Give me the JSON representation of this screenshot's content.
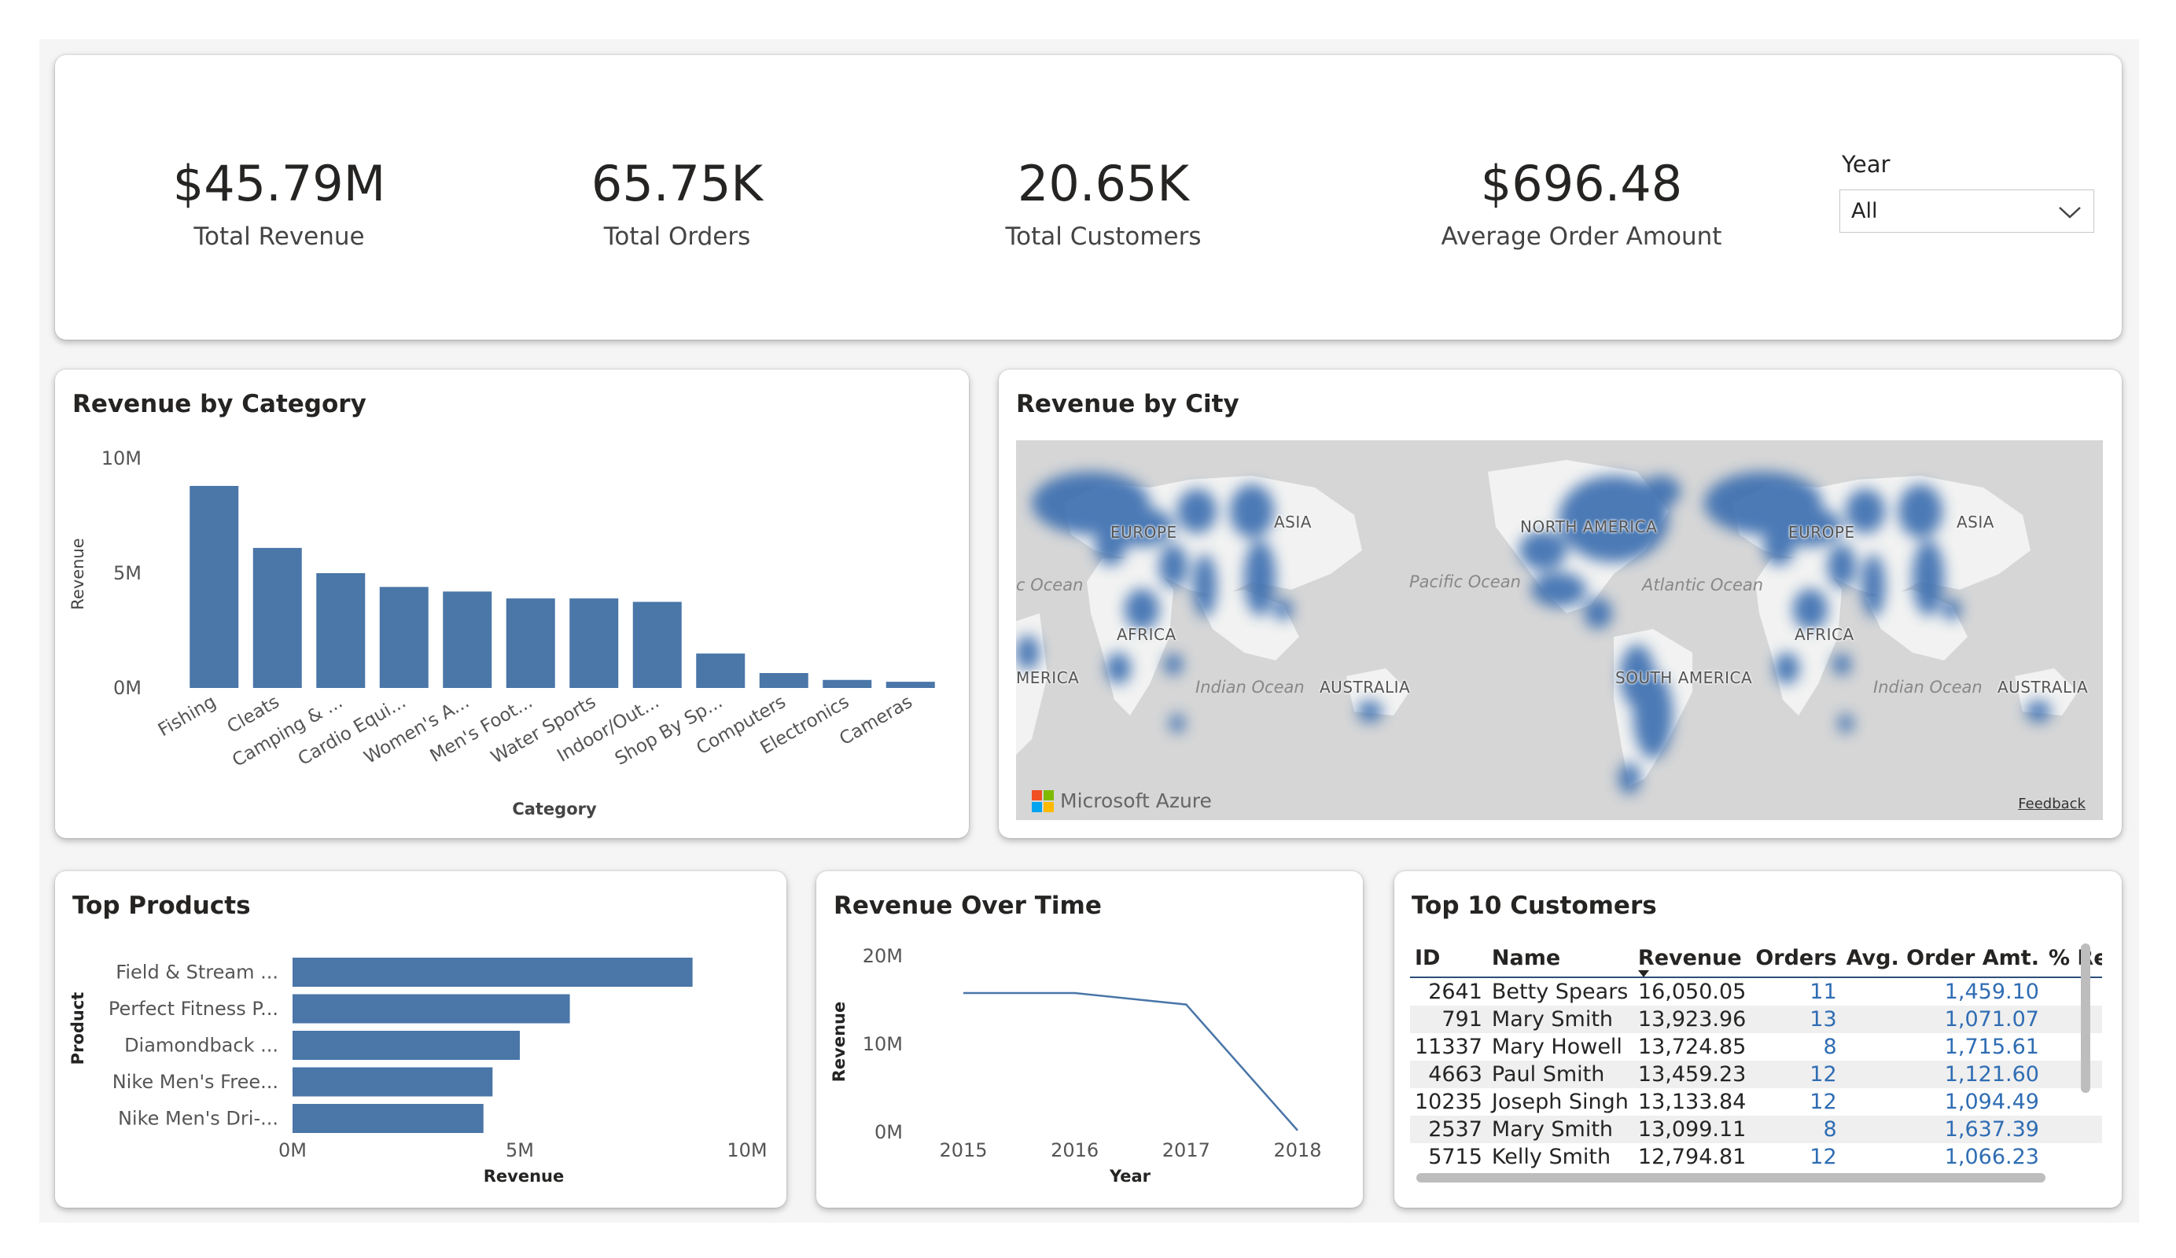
{
  "kpis": [
    {
      "value": "$45.79M",
      "label": "Total Revenue"
    },
    {
      "value": "65.75K",
      "label": "Total Orders"
    },
    {
      "value": "20.65K",
      "label": "Total Customers"
    },
    {
      "value": "$696.48",
      "label": "Average Order Amount"
    }
  ],
  "filter": {
    "label": "Year",
    "selected": "All"
  },
  "colors": {
    "bar": "#4a76a8",
    "line": "#4a76a8",
    "heat": "#3d6fb0"
  },
  "category_chart": {
    "title": "Revenue by Category"
  },
  "city_map": {
    "title": "Revenue by City",
    "labels": [
      "EUROPE",
      "ASIA",
      "AFRICA",
      "AUSTRALIA",
      "NORTH AMERICA",
      "SOUTH AMERICA",
      "EUROPE",
      "ASIA",
      "AFRICA",
      "AUSTRALIA",
      "MERICA"
    ],
    "oceans": [
      "Pacific Ocean",
      "Atlantic Ocean",
      "Indian Ocean",
      "Indian Ocean",
      "c Ocean"
    ],
    "attribution": "Microsoft Azure",
    "feedback": "Feedback"
  },
  "products_chart": {
    "title": "Top Products"
  },
  "time_chart": {
    "title": "Revenue Over Time"
  },
  "customers": {
    "title": "Top 10 Customers",
    "columns": [
      "ID",
      "Name",
      "Revenue",
      "Orders",
      "Avg. Order Amt.",
      "% Re"
    ],
    "rows": [
      [
        "2641",
        "Betty Spears",
        "16,050.05",
        "11",
        "1,459.10"
      ],
      [
        "791",
        "Mary Smith",
        "13,923.96",
        "13",
        "1,071.07"
      ],
      [
        "11337",
        "Mary Howell",
        "13,724.85",
        "8",
        "1,715.61"
      ],
      [
        "4663",
        "Paul Smith",
        "13,459.23",
        "12",
        "1,121.60"
      ],
      [
        "10235",
        "Joseph Singh",
        "13,133.84",
        "12",
        "1,094.49"
      ],
      [
        "2537",
        "Mary Smith",
        "13,099.11",
        "8",
        "1,637.39"
      ],
      [
        "5715",
        "Kelly Smith",
        "12,794.81",
        "12",
        "1,066.23"
      ]
    ]
  },
  "chart_data": [
    {
      "type": "bar",
      "title": "Revenue by Category",
      "xlabel": "Category",
      "ylabel": "Revenue",
      "categories": [
        "Fishing",
        "Cleats",
        "Camping & ...",
        "Cardio Equi...",
        "Women's A...",
        "Men's Foot...",
        "Water Sports",
        "Indoor/Out...",
        "Shop By Sp...",
        "Computers",
        "Electronics",
        "Cameras"
      ],
      "values": [
        8.8,
        6.1,
        5.0,
        4.4,
        4.2,
        3.9,
        3.9,
        3.75,
        1.5,
        0.65,
        0.35,
        0.27
      ],
      "yticks": [
        "0M",
        "5M",
        "10M"
      ],
      "ylim": [
        0,
        10
      ],
      "grid": false
    },
    {
      "type": "bar",
      "orientation": "horizontal",
      "title": "Top Products",
      "xlabel": "Revenue",
      "ylabel": "Product",
      "categories": [
        "Field & Stream ...",
        "Perfect Fitness P...",
        "Diamondback ...",
        "Nike Men's Free...",
        "Nike Men's Dri-..."
      ],
      "values": [
        8.8,
        6.1,
        5.0,
        4.4,
        4.2
      ],
      "xticks": [
        "0M",
        "5M",
        "10M"
      ],
      "xlim": [
        0,
        10
      ],
      "grid": false
    },
    {
      "type": "line",
      "title": "Revenue Over Time",
      "xlabel": "Year",
      "ylabel": "Revenue",
      "x": [
        "2015",
        "2016",
        "2017",
        "2018"
      ],
      "values": [
        15.8,
        15.8,
        14.5,
        0.2
      ],
      "yticks": [
        "0M",
        "10M",
        "20M"
      ],
      "ylim": [
        0,
        20
      ],
      "grid": false
    }
  ]
}
